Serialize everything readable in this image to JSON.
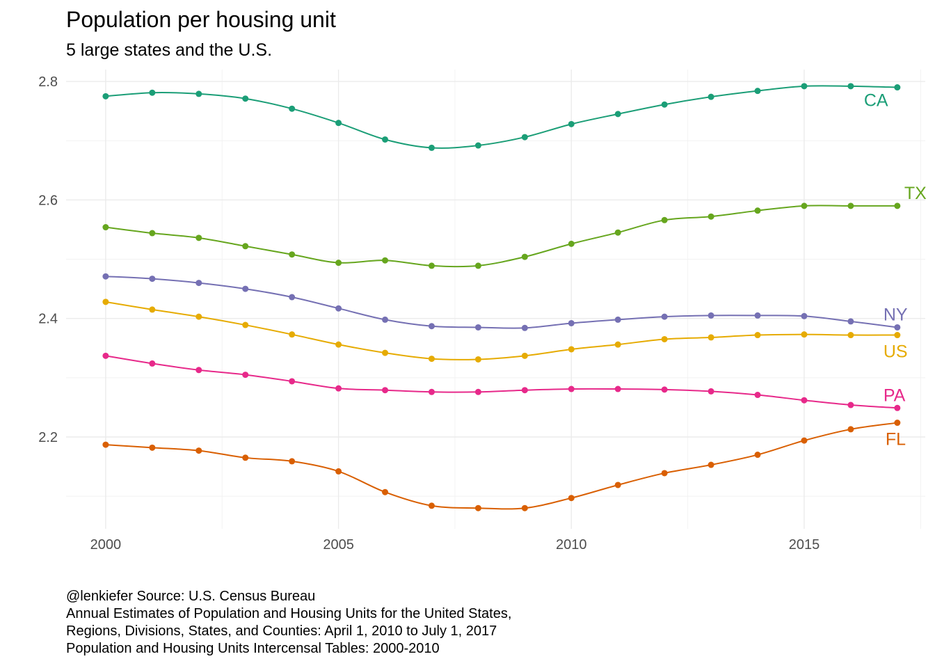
{
  "title": "Population per housing unit",
  "subtitle": "5 large states and the U.S.",
  "caption": [
    "@lenkiefer Source: U.S. Census Bureau",
    "Annual Estimates of Population and Housing Units for the United States,",
    "Regions, Divisions, States, and Counties: April 1, 2010 to July 1, 2017",
    "Population and Housing Units Intercensal Tables: 2000-2010"
  ],
  "chart_data": {
    "type": "line",
    "title": "Population per housing unit",
    "subtitle": "5 large states and the U.S.",
    "xlabel": "",
    "ylabel": "",
    "xlim": [
      1999.15,
      2017.6
    ],
    "ylim": [
      2.045,
      2.82
    ],
    "x_ticks": [
      2000,
      2005,
      2010,
      2015
    ],
    "y_ticks": [
      2.2,
      2.4,
      2.6,
      2.8
    ],
    "grid": true,
    "legend": "direct labels at line ends",
    "x": [
      2000,
      2001,
      2002,
      2003,
      2004,
      2005,
      2006,
      2007,
      2008,
      2009,
      2010,
      2011,
      2012,
      2013,
      2014,
      2015,
      2016,
      2017
    ],
    "series": [
      {
        "name": "CA",
        "color": "#1b9e77",
        "values": [
          2.775,
          2.781,
          2.779,
          2.771,
          2.754,
          2.73,
          2.702,
          2.688,
          2.692,
          2.706,
          2.728,
          2.745,
          2.761,
          2.774,
          2.784,
          2.792,
          2.792,
          2.79
        ]
      },
      {
        "name": "TX",
        "color": "#66a61e",
        "values": [
          2.554,
          2.544,
          2.536,
          2.522,
          2.508,
          2.494,
          2.498,
          2.489,
          2.489,
          2.504,
          2.526,
          2.545,
          2.566,
          2.572,
          2.582,
          2.59,
          2.59,
          2.59
        ]
      },
      {
        "name": "NY",
        "color": "#7570b3",
        "values": [
          2.471,
          2.467,
          2.46,
          2.45,
          2.436,
          2.417,
          2.398,
          2.387,
          2.385,
          2.384,
          2.392,
          2.398,
          2.403,
          2.405,
          2.405,
          2.404,
          2.395,
          2.385
        ]
      },
      {
        "name": "US",
        "color": "#e6ab02",
        "values": [
          2.428,
          2.415,
          2.403,
          2.389,
          2.373,
          2.356,
          2.342,
          2.332,
          2.331,
          2.337,
          2.348,
          2.356,
          2.365,
          2.368,
          2.372,
          2.373,
          2.372,
          2.372
        ]
      },
      {
        "name": "PA",
        "color": "#e7298a",
        "values": [
          2.337,
          2.324,
          2.313,
          2.305,
          2.294,
          2.282,
          2.279,
          2.276,
          2.276,
          2.279,
          2.281,
          2.281,
          2.28,
          2.277,
          2.271,
          2.262,
          2.254,
          2.249
        ]
      },
      {
        "name": "FL",
        "color": "#d95f02",
        "values": [
          2.187,
          2.182,
          2.177,
          2.165,
          2.159,
          2.142,
          2.107,
          2.084,
          2.08,
          2.08,
          2.097,
          2.119,
          2.139,
          2.153,
          2.17,
          2.194,
          2.213,
          2.224
        ]
      }
    ]
  }
}
